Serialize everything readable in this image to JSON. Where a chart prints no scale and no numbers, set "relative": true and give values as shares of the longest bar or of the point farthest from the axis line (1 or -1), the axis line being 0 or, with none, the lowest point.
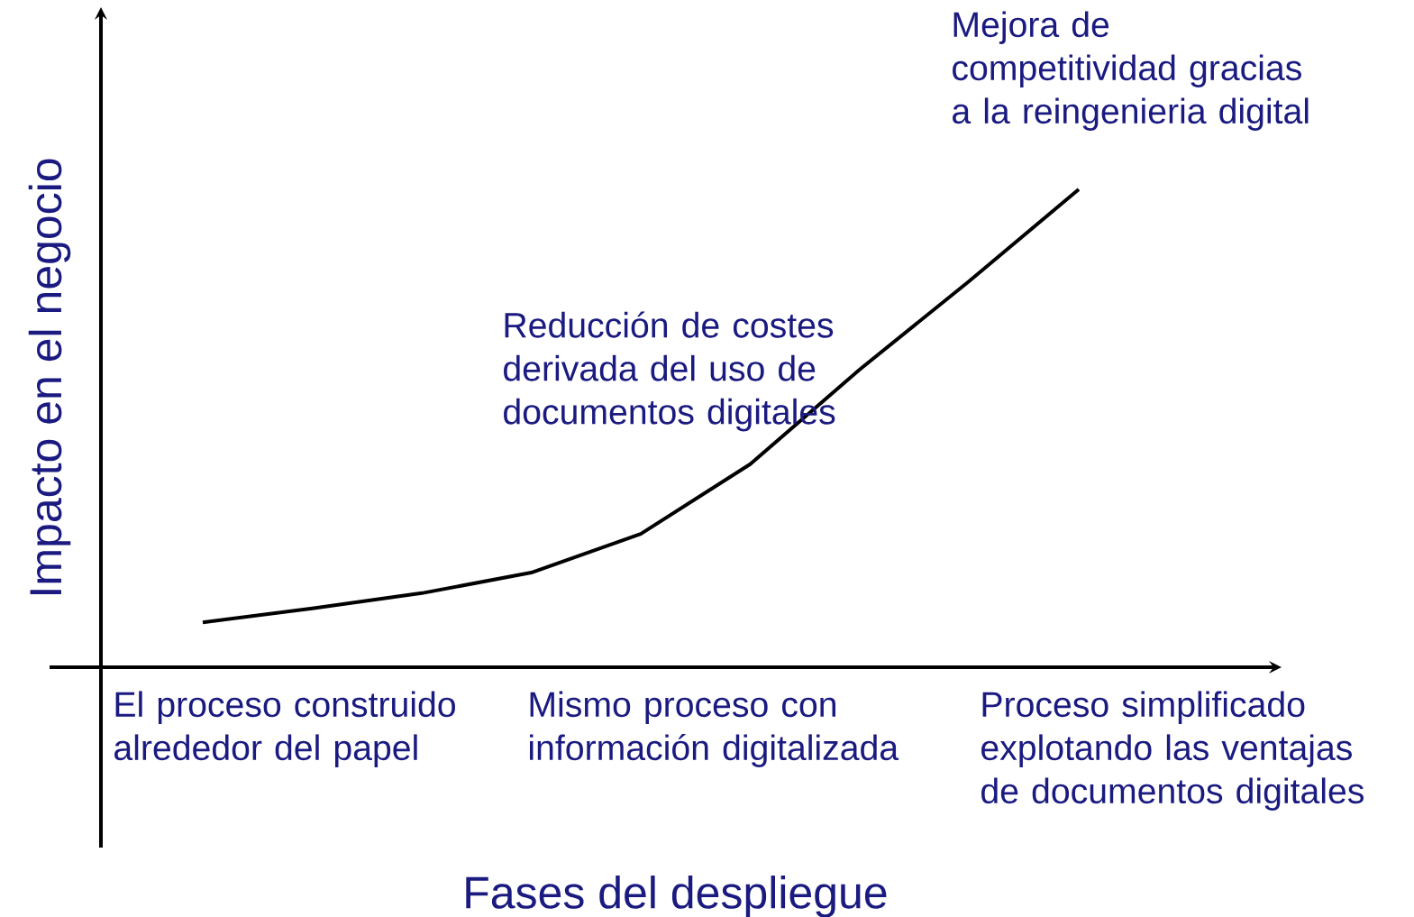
{
  "chart_data": {
    "type": "line",
    "relative": true,
    "xlabel": "Fases del despliegue",
    "ylabel": "Impacto en el negocio",
    "categories": [
      null,
      null,
      null,
      null,
      null,
      null,
      null,
      null,
      null
    ],
    "series": [
      {
        "color": "#000000",
        "values": [
          0.094,
          0.123,
          0.155,
          0.198,
          0.279,
          0.425,
          0.623,
          0.808,
          1
        ]
      }
    ],
    "annotations": [
      "Reducción de costes derivada del uso de documentos digitales",
      "Mejora de competitividad gracias a la reingenieria digital",
      "El proceso construido alrededor del papel",
      "Mismo proceso con información digitalizada",
      "Proceso simplificado explotando las ventajas de documentos digitales"
    ]
  }
}
